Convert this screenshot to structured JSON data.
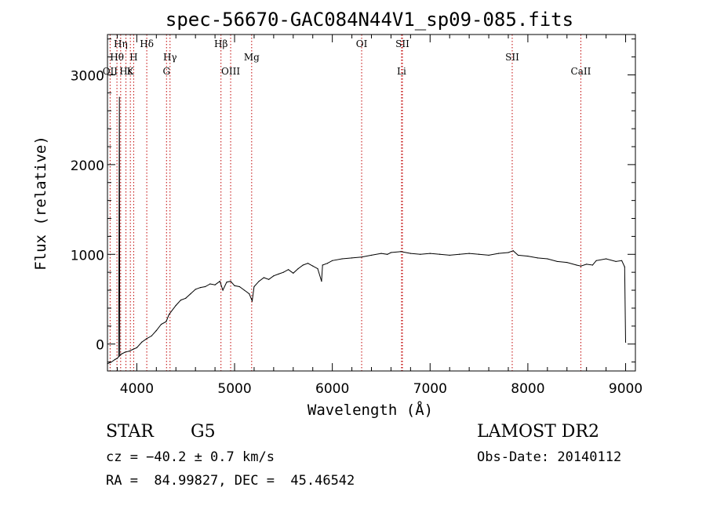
{
  "chart_data": {
    "type": "line",
    "title": "spec-56670-GAC084N44V1_sp09-085.fits",
    "xlabel": "Wavelength (Å)",
    "ylabel": "Flux (relative)",
    "xlim": [
      3700,
      9100
    ],
    "ylim": [
      -300,
      3450
    ],
    "xticks": [
      4000,
      5000,
      6000,
      7000,
      8000,
      9000
    ],
    "yticks": [
      0,
      1000,
      2000,
      3000
    ],
    "xtick_labels": [
      "4000",
      "5000",
      "6000",
      "7000",
      "8000",
      "9000"
    ],
    "ytick_labels": [
      "0",
      "1000",
      "2000",
      "3000"
    ],
    "grid": false,
    "series": [
      {
        "x": [
          3700,
          3740,
          3780,
          3800,
          3815,
          3822,
          3826,
          3832,
          3845,
          3880,
          3920,
          3960,
          4000,
          4050,
          4100,
          4150,
          4200,
          4250,
          4300,
          4330,
          4400,
          4450,
          4500,
          4550,
          4600,
          4650,
          4700,
          4750,
          4800,
          4850,
          4880,
          4920,
          4960,
          5000,
          5050,
          5100,
          5150,
          5180,
          5200,
          5250,
          5300,
          5350,
          5400,
          5450,
          5500,
          5550,
          5600,
          5650,
          5700,
          5750,
          5800,
          5850,
          5890,
          5900,
          5950,
          6000,
          6100,
          6200,
          6300,
          6400,
          6500,
          6563,
          6600,
          6700,
          6800,
          6900,
          7000,
          7100,
          7200,
          7300,
          7400,
          7500,
          7600,
          7700,
          7800,
          7850,
          7900,
          8000,
          8100,
          8200,
          8300,
          8400,
          8498,
          8542,
          8600,
          8662,
          8700,
          8800,
          8900,
          8960,
          8990,
          9000
        ],
        "y": [
          -220,
          -200,
          -170,
          -160,
          -140,
          2750,
          -130,
          -120,
          -110,
          -90,
          -80,
          -60,
          -40,
          20,
          60,
          90,
          150,
          220,
          250,
          330,
          430,
          490,
          510,
          560,
          610,
          630,
          640,
          670,
          660,
          700,
          600,
          690,
          700,
          650,
          640,
          600,
          560,
          480,
          640,
          700,
          740,
          720,
          760,
          780,
          800,
          830,
          790,
          840,
          880,
          900,
          870,
          840,
          700,
          880,
          900,
          930,
          950,
          960,
          970,
          990,
          1010,
          1000,
          1020,
          1030,
          1010,
          1000,
          1010,
          1000,
          990,
          1000,
          1010,
          1000,
          990,
          1010,
          1020,
          1040,
          990,
          980,
          960,
          950,
          920,
          910,
          880,
          870,
          890,
          880,
          930,
          950,
          920,
          930,
          860,
          20
        ]
      }
    ],
    "line_color": "#000000",
    "line_markers": [
      {
        "label": "Hη",
        "wavelength": 3835,
        "row": 1
      },
      {
        "label": "Hθ",
        "wavelength": 3797,
        "row": 2
      },
      {
        "label": "OII",
        "wavelength": 3727,
        "row": 3
      },
      {
        "label": "Hε",
        "wavelength": 3889,
        "row": 3
      },
      {
        "label": "H",
        "wavelength": 3968,
        "row": 2
      },
      {
        "label": "K",
        "wavelength": 3934,
        "row": 3
      },
      {
        "label": "Hδ",
        "wavelength": 4102,
        "row": 1
      },
      {
        "label": "Hγ",
        "wavelength": 4340,
        "row": 2
      },
      {
        "label": "G",
        "wavelength": 4304,
        "row": 3
      },
      {
        "label": "Hβ",
        "wavelength": 4861,
        "row": 1
      },
      {
        "label": "OIII",
        "wavelength": 4960,
        "row": 3
      },
      {
        "label": "Mg",
        "wavelength": 5175,
        "row": 2
      },
      {
        "label": "OI",
        "wavelength": 6300,
        "row": 1
      },
      {
        "label": "SII",
        "wavelength": 6717,
        "row": 1
      },
      {
        "label": "Li",
        "wavelength": 6708,
        "row": 3
      },
      {
        "label": "SII",
        "wavelength": 7840,
        "row": 2
      },
      {
        "label": "CaII",
        "wavelength": 8542,
        "row": 3
      }
    ],
    "marker_color": "#c00000"
  },
  "info": {
    "class_label": "STAR",
    "subclass": "G5",
    "survey": "LAMOST DR2",
    "velocity": "cz = −40.2 ± 0.7 km/s",
    "obs_date": "Obs-Date: 20140112",
    "coords": "RA =  84.99827, DEC =  45.46542"
  }
}
